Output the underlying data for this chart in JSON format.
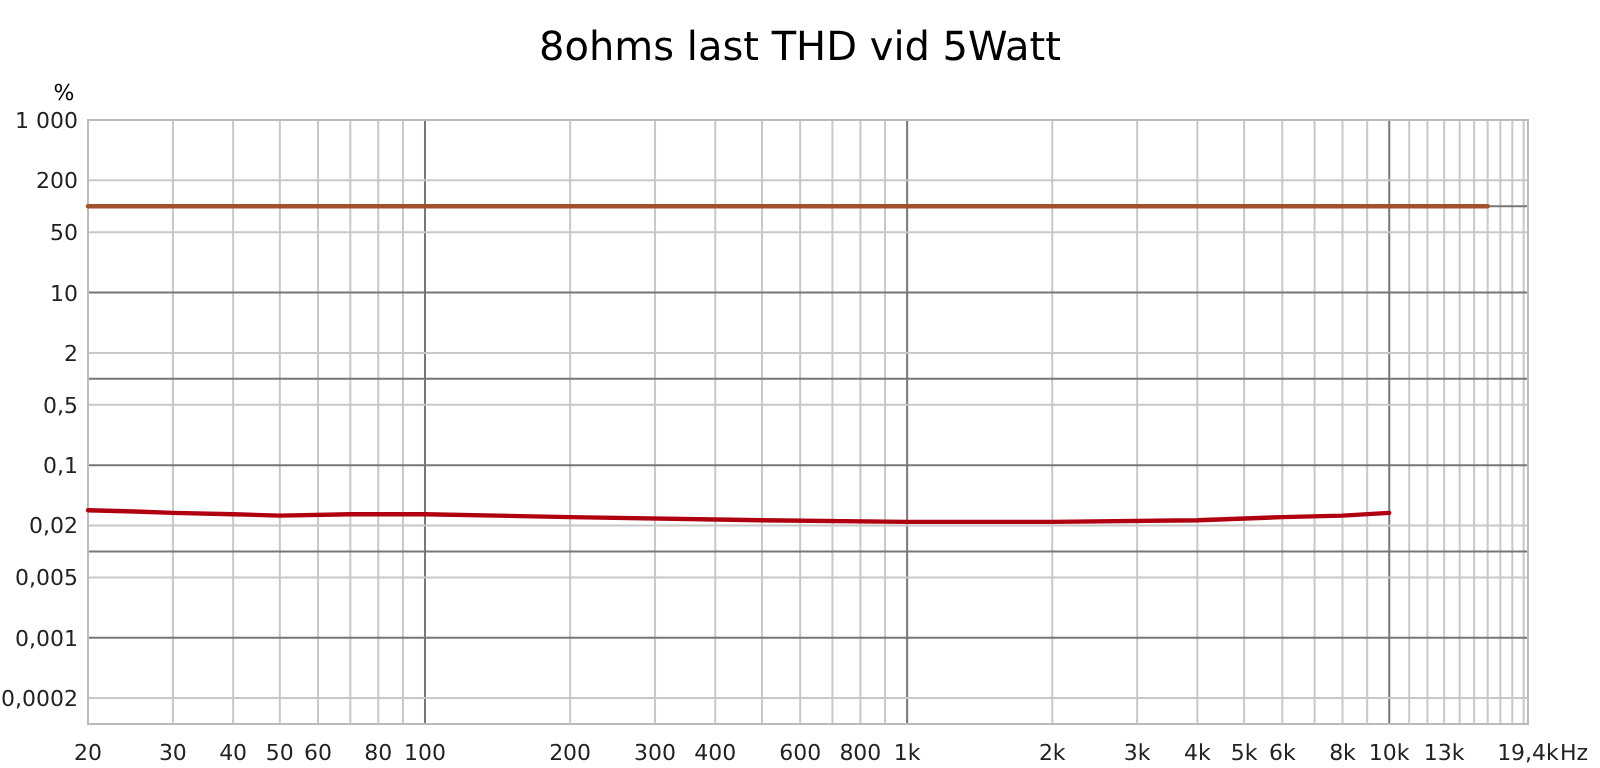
{
  "chart_data": {
    "type": "line",
    "title": "8ohms last THD vid 5Watt",
    "ylabel": "%",
    "xlabel": "Hz",
    "log": "xy",
    "grid": true,
    "marker": "none",
    "line_style": "solid",
    "xlim": [
      20,
      19400
    ],
    "ylim": [
      0.0001,
      1000
    ],
    "xticks": [
      20,
      30,
      40,
      50,
      60,
      {
        "value": 70,
        "label": null
      },
      80,
      {
        "value": 90,
        "label": null
      },
      100,
      200,
      300,
      400,
      {
        "value": 500,
        "label": null
      },
      600,
      {
        "value": 700,
        "label": null
      },
      800,
      {
        "value": 900,
        "label": null
      },
      {
        "value": 1000,
        "label": "1k"
      },
      {
        "value": 2000,
        "label": "2k"
      },
      {
        "value": 3000,
        "label": "3k"
      },
      {
        "value": 4000,
        "label": "4k"
      },
      {
        "value": 5000,
        "label": "5k"
      },
      {
        "value": 6000,
        "label": "6k"
      },
      {
        "value": 7000,
        "label": null
      },
      {
        "value": 8000,
        "label": "8k"
      },
      {
        "value": 9000,
        "label": null
      },
      {
        "value": 10000,
        "label": "10k"
      },
      {
        "value": 11000,
        "label": null
      },
      {
        "value": 12000,
        "label": null
      },
      {
        "value": 13000,
        "label": "13k"
      },
      {
        "value": 14000,
        "label": null
      },
      {
        "value": 15000,
        "label": null
      },
      {
        "value": 16000,
        "label": null
      },
      {
        "value": 17000,
        "label": null
      },
      {
        "value": 18000,
        "label": null
      },
      {
        "value": 19000,
        "label": null
      },
      {
        "value": 19400,
        "label": "19,4k"
      }
    ],
    "yticks": [
      {
        "value": 0.0002,
        "label": "0,0002"
      },
      {
        "value": 0.001,
        "label": "0,001"
      },
      {
        "value": 0.005,
        "label": "0,005"
      },
      {
        "value": 0.01,
        "label": null
      },
      {
        "value": 0.02,
        "label": "0,02"
      },
      {
        "value": 0.1,
        "label": "0,1"
      },
      {
        "value": 0.5,
        "label": "0,5"
      },
      {
        "value": 1,
        "label": null
      },
      2,
      10,
      50,
      {
        "value": 100,
        "label": null
      },
      200,
      {
        "value": 1000,
        "label": "1 000"
      }
    ],
    "series": [
      {
        "color": "#a0522d",
        "x": [
          20,
          16000
        ],
        "values": [
          100,
          100
        ]
      },
      {
        "color": "#b00010",
        "x": [
          20,
          25,
          30,
          40,
          50,
          70,
          100,
          200,
          500,
          1000,
          2000,
          4000,
          6000,
          8000,
          10000
        ],
        "values": [
          0.03,
          0.029,
          0.028,
          0.027,
          0.026,
          0.027,
          0.027,
          0.025,
          0.023,
          0.022,
          0.022,
          0.023,
          0.025,
          0.026,
          0.028
        ]
      }
    ]
  }
}
